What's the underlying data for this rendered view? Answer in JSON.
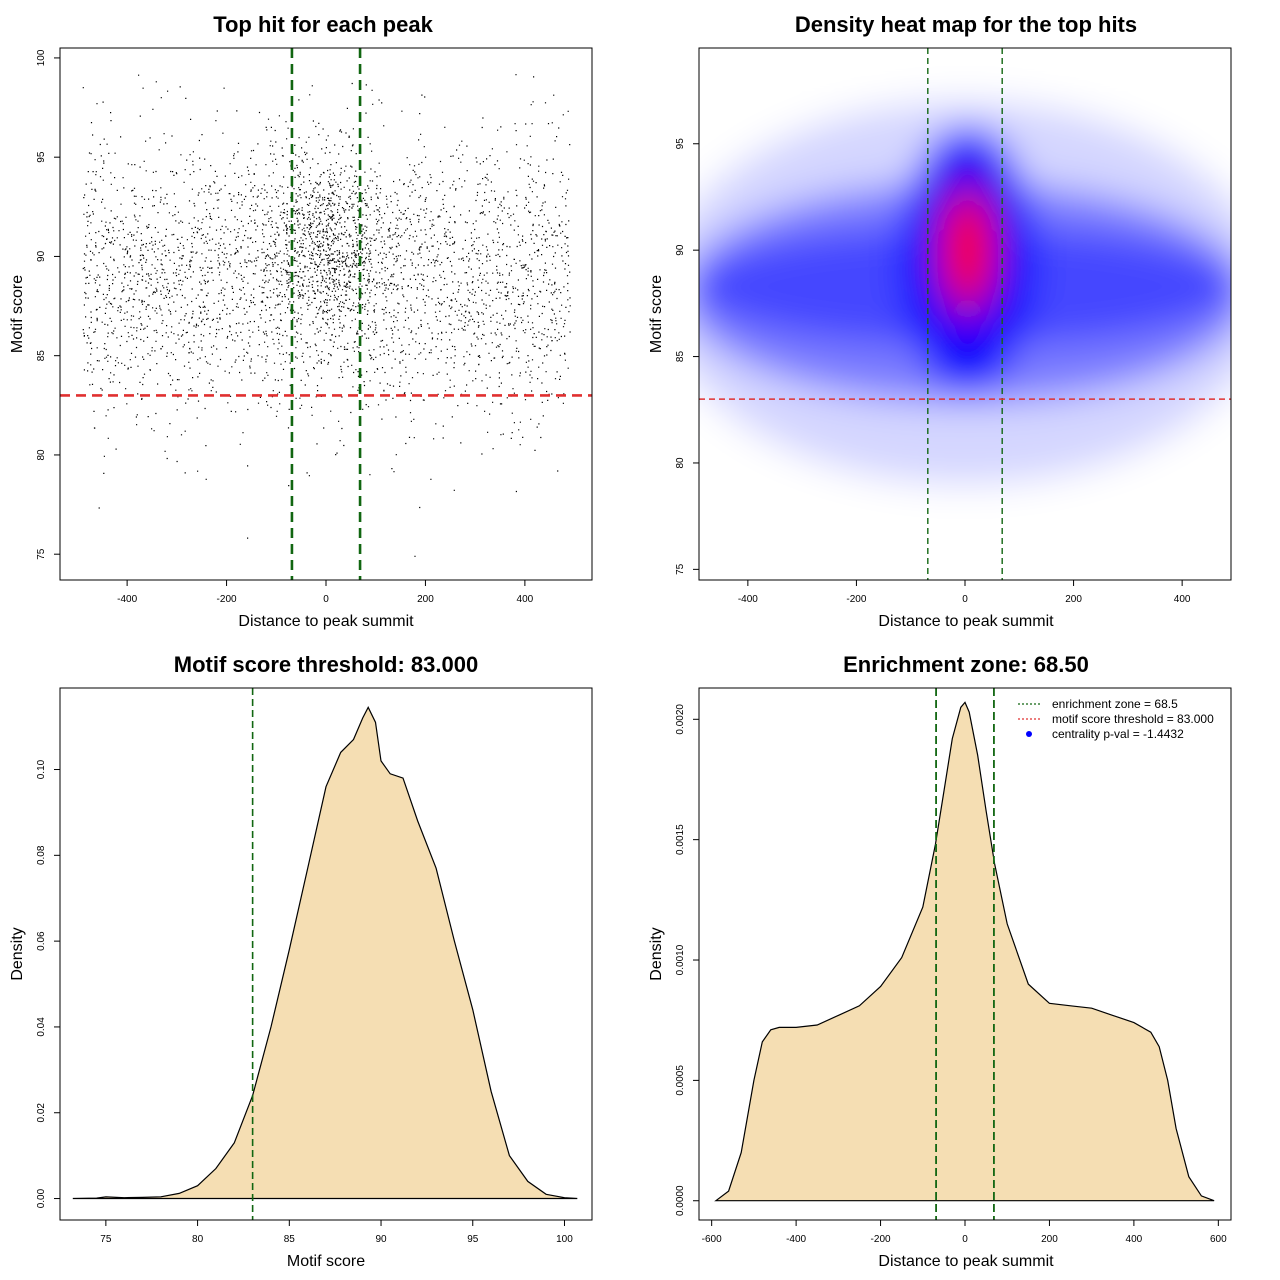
{
  "colors": {
    "threshold_line": "#e03030",
    "zone_line": "#116611",
    "fill": "#f5deb3",
    "heat_low": "#ffffff",
    "heat_mid": "#0000ff",
    "heat_high": "#ff0000",
    "legend_marker": "#0000ff"
  },
  "chart_data": [
    {
      "type": "scatter",
      "title": "Top hit for each peak",
      "xlabel": "Distance to peak summit",
      "ylabel": "Motif score",
      "xlim": [
        -535,
        535
      ],
      "ylim": [
        73.7,
        100.5
      ],
      "xticks": [
        "-400",
        "-200",
        "0",
        "200",
        "400"
      ],
      "xtick_values": [
        -400,
        -200,
        0,
        200,
        400
      ],
      "yticks": [
        "75",
        "80",
        "85",
        "90",
        "95",
        "100"
      ],
      "ytick_values": [
        75,
        80,
        85,
        90,
        95,
        100
      ],
      "hlines": [
        83
      ],
      "vlines": [
        -68.5,
        68.5
      ],
      "point_summary": {
        "approx_count": 9000,
        "x_range": [
          -490,
          490
        ],
        "y_peak_center": 89,
        "y_spread": 3.5,
        "central_cluster": {
          "x_center": 0,
          "x_spread": 60,
          "y_center": 90.5
        }
      }
    },
    {
      "type": "heatmap",
      "title": "Density heat map for the top hits",
      "xlabel": "Distance to peak summit",
      "ylabel": "Motif score",
      "xlim": [
        -490,
        490
      ],
      "ylim": [
        74.5,
        99.5
      ],
      "xticks": [
        "-400",
        "-200",
        "0",
        "200",
        "400"
      ],
      "xtick_values": [
        -400,
        -200,
        0,
        200,
        400
      ],
      "yticks": [
        "75",
        "80",
        "85",
        "90",
        "95"
      ],
      "ytick_values": [
        75,
        80,
        85,
        90,
        95
      ],
      "hlines": [
        83
      ],
      "vlines": [
        -68.5,
        68.5
      ],
      "density_peak": {
        "x": 5,
        "y": 90
      }
    },
    {
      "type": "area",
      "title": "Motif score threshold: 83.000",
      "xlabel": "Motif score",
      "ylabel": "Density",
      "xlim": [
        72.5,
        101.5
      ],
      "ylim": [
        -0.005,
        0.119
      ],
      "xticks": [
        "75",
        "80",
        "85",
        "90",
        "95",
        "100"
      ],
      "xtick_values": [
        75,
        80,
        85,
        90,
        95,
        100
      ],
      "yticks": [
        "0.00",
        "0.02",
        "0.04",
        "0.06",
        "0.08",
        "0.10"
      ],
      "ytick_values": [
        0,
        0.02,
        0.04,
        0.06,
        0.08,
        0.1
      ],
      "vlines": [
        83
      ],
      "x": [
        73.2,
        74.5,
        75.0,
        76.0,
        77.0,
        78.0,
        79.0,
        80.0,
        81.0,
        82.0,
        83.0,
        84.0,
        85.0,
        86.0,
        87.0,
        87.8,
        88.5,
        89.0,
        89.3,
        89.7,
        90.0,
        90.5,
        91.2,
        92.0,
        93.0,
        94.0,
        95.0,
        96.0,
        97.0,
        98.0,
        99.0,
        100.0,
        100.7
      ],
      "values": [
        0.0,
        0.0001,
        0.0004,
        0.0002,
        0.0003,
        0.0004,
        0.0012,
        0.003,
        0.007,
        0.013,
        0.024,
        0.04,
        0.058,
        0.077,
        0.096,
        0.104,
        0.107,
        0.112,
        0.1145,
        0.111,
        0.102,
        0.099,
        0.098,
        0.088,
        0.077,
        0.06,
        0.044,
        0.025,
        0.01,
        0.004,
        0.001,
        0.0002,
        0.0
      ]
    },
    {
      "type": "area",
      "title": "Enrichment zone: 68.50",
      "xlabel": "Distance to peak summit",
      "ylabel": "Density",
      "xlim": [
        -630,
        630
      ],
      "ylim": [
        -8e-05,
        0.00213
      ],
      "xticks": [
        "-600",
        "-400",
        "-200",
        "0",
        "200",
        "400",
        "600"
      ],
      "xtick_values": [
        -600,
        -400,
        -200,
        0,
        200,
        400,
        600
      ],
      "yticks": [
        "0.0000",
        "0.0005",
        "0.0010",
        "0.0015",
        "0.0020"
      ],
      "ytick_values": [
        0,
        0.0005,
        0.001,
        0.0015,
        0.002
      ],
      "vlines": [
        -68.5,
        68.5
      ],
      "x": [
        -590,
        -560,
        -530,
        -500,
        -480,
        -460,
        -440,
        -400,
        -350,
        -300,
        -250,
        -200,
        -150,
        -100,
        -70,
        -50,
        -30,
        -10,
        0,
        10,
        30,
        50,
        70,
        100,
        150,
        200,
        250,
        300,
        350,
        400,
        440,
        460,
        480,
        500,
        530,
        560,
        590
      ],
      "values": [
        0.0,
        4e-05,
        0.0002,
        0.0005,
        0.00066,
        0.00071,
        0.00072,
        0.00072,
        0.00073,
        0.00077,
        0.00081,
        0.00089,
        0.00101,
        0.00122,
        0.00148,
        0.0017,
        0.00192,
        0.00205,
        0.00207,
        0.00203,
        0.00185,
        0.00162,
        0.0014,
        0.00115,
        0.0009,
        0.00082,
        0.00081,
        0.0008,
        0.00077,
        0.00074,
        0.0007,
        0.00064,
        0.0005,
        0.0003,
        0.0001,
        2e-05,
        0.0
      ],
      "legend": {
        "position": "top-right",
        "entries": [
          {
            "label": "enrichment zone = 68.5",
            "marker": "dotted-line",
            "color": "#116611"
          },
          {
            "label": "motif score threshold = 83.000",
            "marker": "dotted-line",
            "color": "#e03030"
          },
          {
            "label": "centrality p-val = -1.4432",
            "marker": "point",
            "color": "#0000ff"
          }
        ]
      }
    }
  ]
}
